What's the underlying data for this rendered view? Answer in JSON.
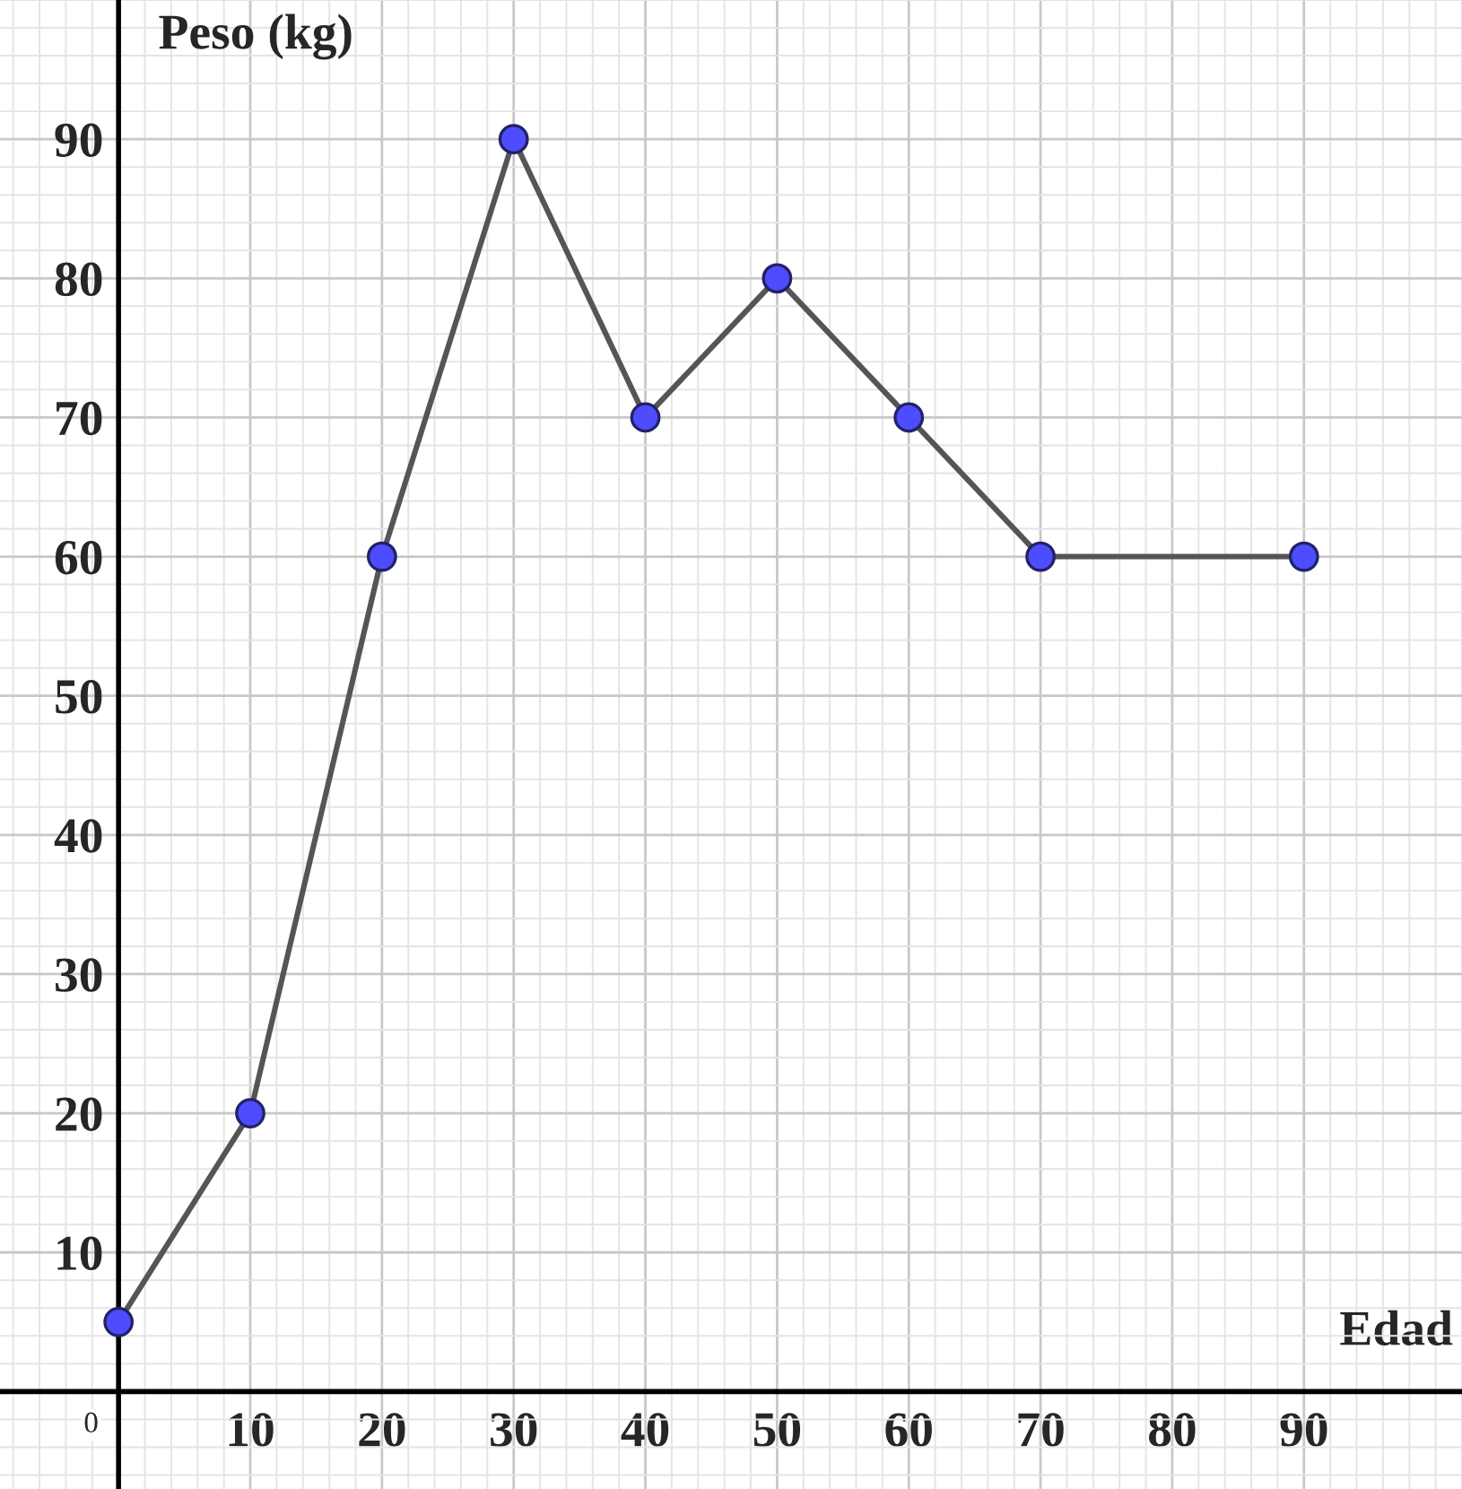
{
  "chart_data": {
    "type": "line",
    "xlabel": "Edad",
    "ylabel": "Peso (kg)",
    "x": [
      0,
      10,
      20,
      30,
      40,
      50,
      60,
      70,
      90
    ],
    "series": [
      {
        "color": "#4d4dff",
        "values": [
          5,
          20,
          60,
          90,
          70,
          80,
          70,
          60,
          60
        ]
      }
    ],
    "xlim": [
      -9,
      102
    ],
    "ylim": [
      -7,
      100
    ],
    "annotations": [
      "0"
    ],
    "xticks": [
      {
        "value": 0,
        "label": null
      },
      10,
      20,
      30,
      40,
      50,
      60,
      70,
      80,
      90
    ],
    "yticks": [
      {
        "value": 0,
        "label": null
      },
      10,
      20,
      30,
      40,
      50,
      60,
      70,
      80,
      90
    ],
    "grid": true,
    "marker": "circle",
    "line_style": "solid",
    "legend": false
  }
}
